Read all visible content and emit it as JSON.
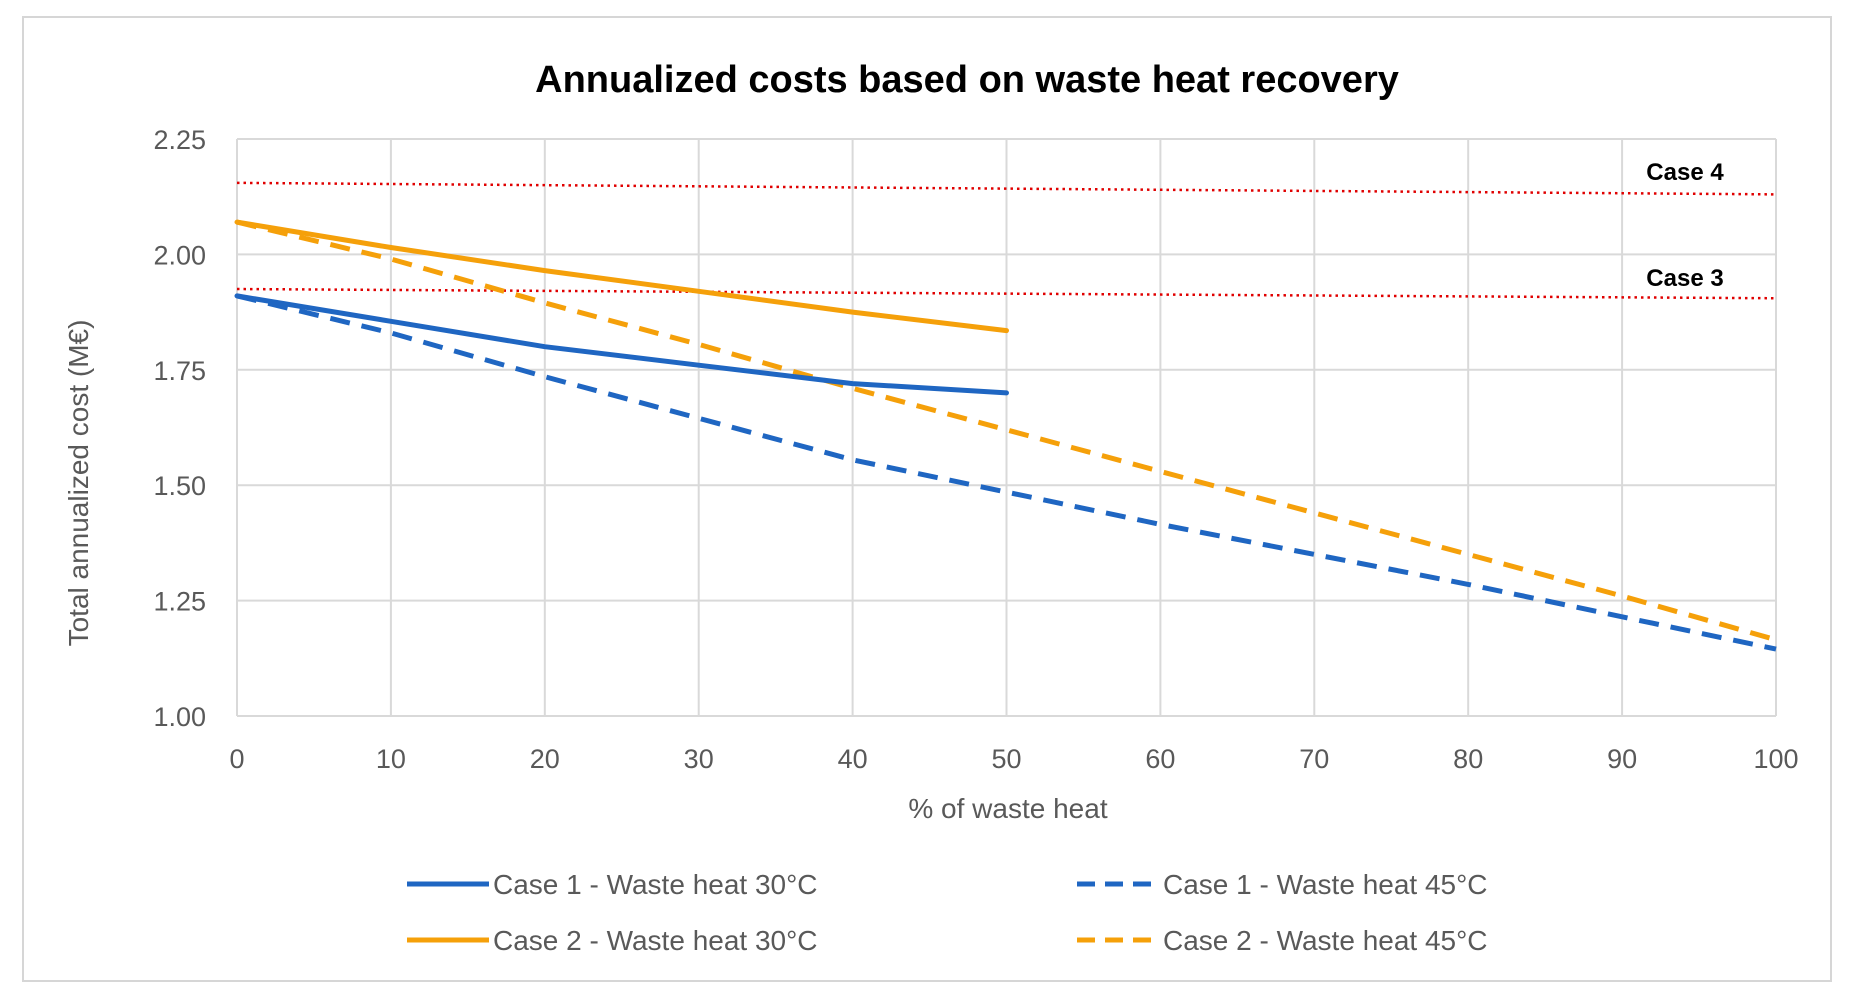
{
  "chart_data": {
    "type": "line",
    "title": "Annualized costs based on waste heat recovery",
    "xlabel": "% of waste heat",
    "ylabel": "Total annualized cost (M€)",
    "xlim": [
      0,
      100
    ],
    "ylim": [
      1.0,
      2.25
    ],
    "xticks": [
      0,
      10,
      20,
      30,
      40,
      50,
      60,
      70,
      80,
      90,
      100
    ],
    "yticks": [
      1.0,
      1.25,
      1.5,
      1.75,
      2.0,
      2.25
    ],
    "xtick_labels": [
      "0",
      "10",
      "20",
      "30",
      "40",
      "50",
      "60",
      "70",
      "80",
      "90",
      "100"
    ],
    "ytick_labels": [
      "1.00",
      "1.25",
      "1.50",
      "1.75",
      "2.00",
      "2.25"
    ],
    "grid": true,
    "legend_position": "bottom",
    "series": [
      {
        "name": "Case 1 - Waste heat 30°C",
        "color": "#1f66c2",
        "dash": "solid",
        "x": [
          0,
          10,
          20,
          30,
          40,
          50
        ],
        "y": [
          1.91,
          1.855,
          1.8,
          1.76,
          1.72,
          1.7
        ]
      },
      {
        "name": "Case 1 - Waste heat 45°C",
        "color": "#1f66c2",
        "dash": "dashed",
        "x": [
          0,
          10,
          20,
          30,
          40,
          50,
          60,
          70,
          80,
          90,
          100
        ],
        "y": [
          1.91,
          1.83,
          1.735,
          1.645,
          1.555,
          1.485,
          1.415,
          1.35,
          1.285,
          1.215,
          1.145
        ]
      },
      {
        "name": "Case 2 - Waste heat 30°C",
        "color": "#f5a00a",
        "dash": "solid",
        "x": [
          0,
          10,
          20,
          30,
          40,
          50
        ],
        "y": [
          2.07,
          2.015,
          1.965,
          1.92,
          1.875,
          1.835
        ]
      },
      {
        "name": "Case 2 - Waste heat 45°C",
        "color": "#f5a00a",
        "dash": "dashed",
        "x": [
          0,
          10,
          20,
          30,
          40,
          50,
          60,
          70,
          80,
          90,
          100
        ],
        "y": [
          2.07,
          1.99,
          1.895,
          1.805,
          1.71,
          1.62,
          1.53,
          1.44,
          1.35,
          1.26,
          1.165
        ]
      }
    ],
    "reference_lines": [
      {
        "label": "Case 4",
        "color": "#e00000",
        "y_start": 2.155,
        "y_end": 2.13
      },
      {
        "label": "Case 3",
        "color": "#e00000",
        "y_start": 1.925,
        "y_end": 1.905
      }
    ]
  }
}
